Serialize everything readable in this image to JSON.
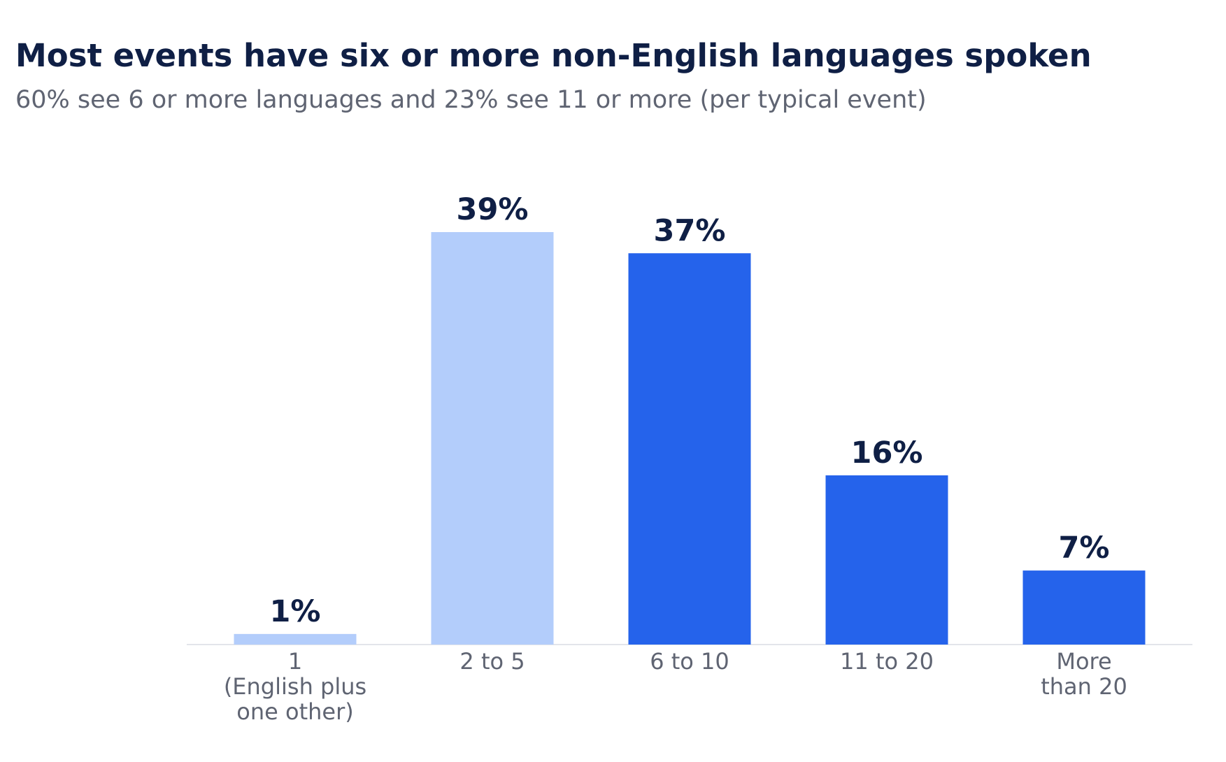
{
  "title": "Most events have six or more non-English languages spoken",
  "subtitle": "60% see 6 or more languages and 23% see 11 or more (per typical event)",
  "colors": {
    "title": "#0f1f45",
    "subtitle": "#5f6472",
    "bar_light": "#b3cdfb",
    "bar_dark": "#2563eb",
    "value_label": "#0f1f45",
    "tick_label": "#5f6472",
    "baseline": "#e3e5ea"
  },
  "chart_data": {
    "type": "bar",
    "title": "Most events have six or more non-English languages spoken",
    "subtitle": "60% see 6 or more languages and 23% see 11 or more (per typical event)",
    "categories": [
      [
        "1",
        "(English plus",
        "one other)"
      ],
      [
        "2 to 5"
      ],
      [
        "6 to 10"
      ],
      [
        "11 to 20"
      ],
      [
        "More",
        "than 20"
      ]
    ],
    "values": [
      1,
      39,
      37,
      16,
      7
    ],
    "value_labels": [
      "1%",
      "39%",
      "37%",
      "16%",
      "7%"
    ],
    "bar_colors": [
      "#b3cdfb",
      "#b3cdfb",
      "#2563eb",
      "#2563eb",
      "#2563eb"
    ],
    "xlabel": "",
    "ylabel": "",
    "ylim": [
      0,
      39
    ],
    "grid": false,
    "legend": "none"
  }
}
